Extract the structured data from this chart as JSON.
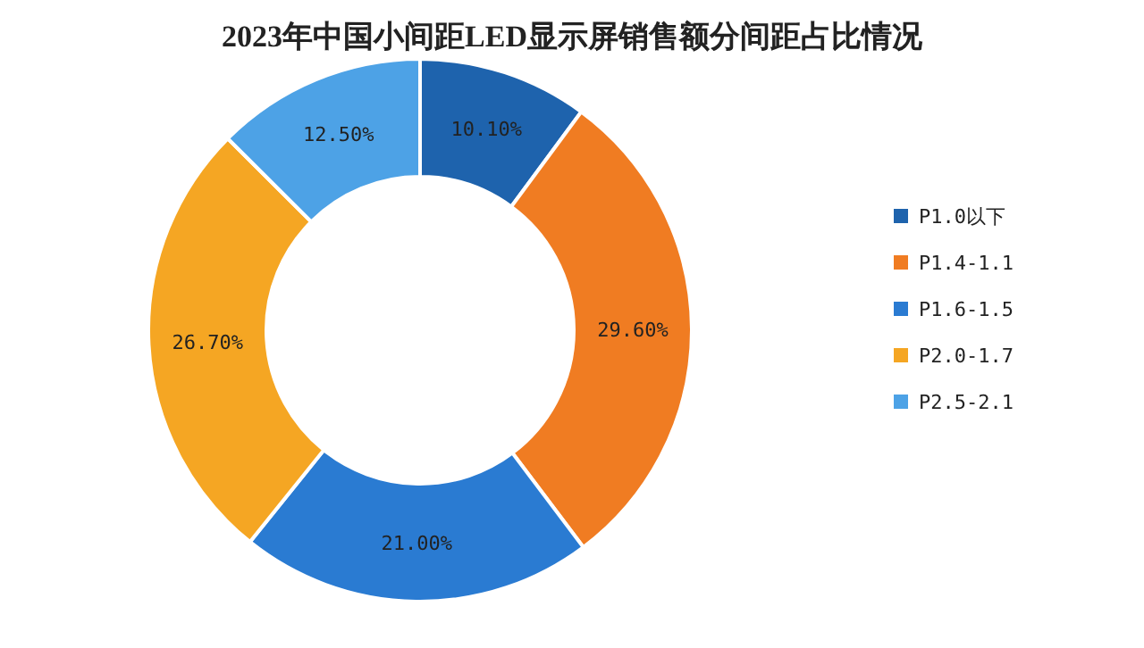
{
  "chart_data": {
    "type": "donut",
    "title": "2023年中国小间距LED显示屏销售额分间距占比情况",
    "categories": [
      "P1.0以下",
      "P1.4-1.1",
      "P1.6-1.5",
      "P2.0-1.7",
      "P2.5-2.1"
    ],
    "values": [
      10.1,
      29.6,
      21.0,
      26.7,
      12.5
    ],
    "colors": [
      "#1e63ad",
      "#f07c22",
      "#2a7bd2",
      "#f5a623",
      "#4da2e6"
    ],
    "value_labels": [
      "10.10%",
      "29.60%",
      "21.00%",
      "26.70%",
      "12.50%"
    ],
    "legend": "right"
  }
}
